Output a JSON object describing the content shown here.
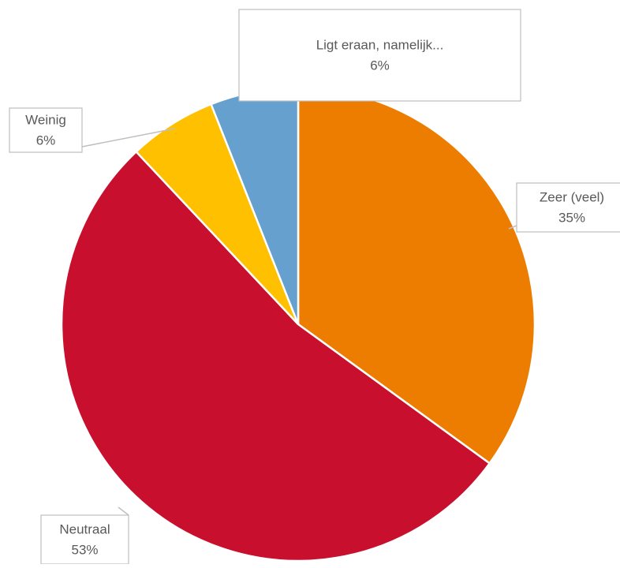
{
  "chart_data": {
    "type": "pie",
    "categories": [
      "Zeer (veel)",
      "Neutraal",
      "Weinig",
      "Ligt eraan, namelijk..."
    ],
    "values": [
      35,
      53,
      6,
      6
    ],
    "value_labels": [
      "35%",
      "53%",
      "6%",
      "6%"
    ],
    "colors": [
      "#ed7d00",
      "#c8102e",
      "#ffc000",
      "#66a0cf"
    ]
  }
}
